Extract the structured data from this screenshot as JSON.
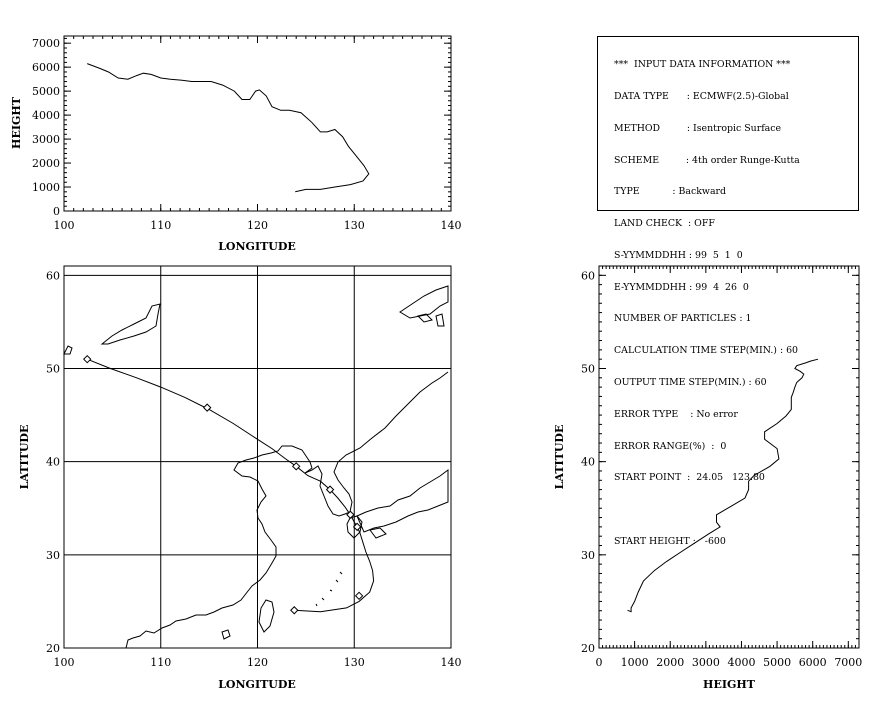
{
  "info_panel": {
    "title": "***  INPUT DATA INFORMATION ***",
    "lines": [
      "DATA TYPE      : ECMWF(2.5)-Global",
      "METHOD         : Isentropic Surface",
      "SCHEME         : 4th order Runge-Kutta",
      "TYPE           : Backward",
      "LAND CHECK  : OFF",
      "S-YYMMDDHH : 99  5  1  0",
      "E-YYMMDDHH : 99  4  26  0",
      "NUMBER OF PARTICLES : 1",
      "CALCULATION TIME STEP(MIN.) : 60",
      "OUTPUT TIME STEP(MIN.) : 60",
      "ERROR TYPE    : No error",
      "ERROR RANGE(%)  :  0",
      "START POINT  :  24.05   123.80",
      "",
      "START HEIGHT :   -600"
    ]
  },
  "chart_data": [
    {
      "type": "line",
      "panel": "height-vs-longitude",
      "xlabel": "LONGITUDE",
      "ylabel": "HEIGHT",
      "xlim": [
        100,
        140
      ],
      "ylim": [
        0,
        7300
      ],
      "xticks": [
        "100",
        "110",
        "120",
        "130",
        "140"
      ],
      "yticks": [
        "0",
        "1000",
        "2000",
        "3000",
        "4000",
        "5000",
        "6000",
        "7000"
      ],
      "x": [
        123.9,
        125.0,
        126.5,
        128.0,
        129.6,
        130.9,
        131.5,
        131.0,
        130.2,
        129.4,
        128.8,
        128.0,
        127.2,
        126.5,
        125.6,
        124.5,
        123.3,
        122.4,
        121.5,
        120.9,
        120.2,
        119.8,
        119.2,
        118.4,
        117.6,
        116.4,
        115.2,
        114.3,
        113.2,
        112.2,
        111.0,
        110.0,
        109.0,
        108.2,
        107.5,
        106.6,
        105.6,
        104.6,
        103.7,
        102.4
      ],
      "y": [
        800,
        900,
        900,
        1000,
        1100,
        1250,
        1550,
        1900,
        2300,
        2700,
        3100,
        3400,
        3300,
        3300,
        3700,
        4100,
        4200,
        4200,
        4350,
        4800,
        5050,
        5000,
        4650,
        4650,
        5000,
        5250,
        5400,
        5400,
        5400,
        5450,
        5500,
        5550,
        5700,
        5750,
        5650,
        5500,
        5550,
        5800,
        5950,
        6150
      ],
      "markers": []
    },
    {
      "type": "line",
      "panel": "trajectory-map",
      "xlabel": "LONGITUDE",
      "ylabel": "LATITUDE",
      "xlim": [
        100,
        140
      ],
      "ylim": [
        20,
        61
      ],
      "xticks": [
        "100",
        "110",
        "120",
        "130",
        "140"
      ],
      "yticks": [
        "20",
        "30",
        "40",
        "50",
        "60"
      ],
      "x": [
        123.8,
        126.5,
        129.2,
        130.5,
        131.6,
        132.0,
        131.9,
        131.6,
        131.2,
        130.9,
        130.6,
        130.3,
        130.0,
        129.6,
        129.0,
        128.3,
        127.5,
        126.5,
        125.2,
        124.0,
        122.9,
        121.5,
        120.0,
        117.5,
        115.0,
        112.5,
        110.0,
        107.5,
        104.8,
        102.4
      ],
      "y": [
        24.05,
        23.9,
        24.3,
        25.0,
        26.0,
        27.2,
        28.3,
        29.3,
        30.3,
        31.3,
        32.3,
        33.0,
        33.5,
        34.3,
        35.2,
        36.1,
        37.0,
        37.9,
        38.5,
        39.5,
        40.3,
        41.4,
        42.4,
        44.1,
        45.6,
        46.9,
        48.0,
        49.0,
        50.0,
        51.0
      ],
      "markers": [
        [
          123.8,
          24.05
        ],
        [
          130.5,
          25.6
        ],
        [
          130.3,
          33.0
        ],
        [
          129.6,
          34.3
        ],
        [
          127.5,
          37.0
        ],
        [
          124.0,
          39.5
        ],
        [
          114.8,
          45.8
        ],
        [
          102.4,
          51.0
        ]
      ]
    },
    {
      "type": "line",
      "panel": "latitude-vs-height",
      "xlabel": "HEIGHT",
      "ylabel": "LATITUDE",
      "xlim": [
        0,
        7300
      ],
      "ylim": [
        20,
        61
      ],
      "xticks": [
        "0",
        "1000",
        "2000",
        "3000",
        "4000",
        "5000",
        "6000",
        "7000"
      ],
      "yticks": [
        "20",
        "30",
        "40",
        "50",
        "60"
      ],
      "x": [
        800,
        900,
        900,
        1000,
        1100,
        1250,
        1550,
        1900,
        2300,
        2700,
        3100,
        3400,
        3300,
        3300,
        3700,
        4100,
        4200,
        4200,
        4350,
        4800,
        5050,
        5000,
        4650,
        4650,
        5000,
        5250,
        5400,
        5400,
        5400,
        5450,
        5500,
        5550,
        5700,
        5750,
        5650,
        5500,
        5550,
        5800,
        5950,
        6150
      ],
      "y": [
        24.05,
        23.9,
        24.3,
        25.0,
        26.0,
        27.2,
        28.3,
        29.3,
        30.3,
        31.3,
        32.3,
        33.0,
        33.5,
        34.3,
        35.2,
        36.1,
        37.0,
        37.9,
        38.5,
        39.5,
        40.3,
        41.4,
        42.4,
        43.2,
        44.1,
        44.9,
        45.6,
        46.3,
        46.9,
        47.4,
        48.0,
        48.5,
        49.0,
        49.4,
        49.7,
        50.0,
        50.3,
        50.6,
        50.8,
        51.0
      ],
      "markers": []
    }
  ]
}
